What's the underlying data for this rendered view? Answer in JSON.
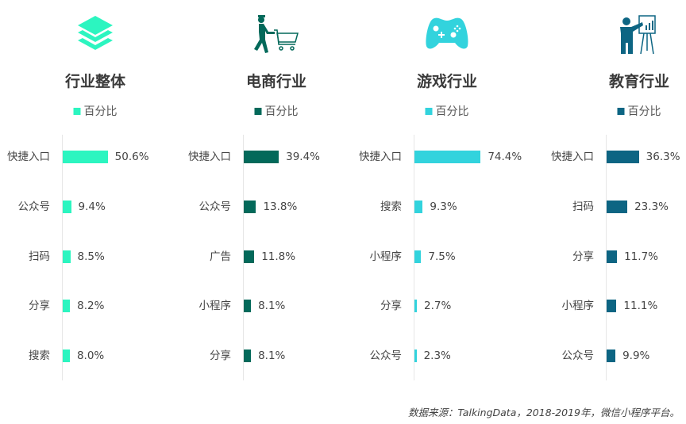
{
  "chart_data": [
    {
      "type": "bar",
      "title": "行业整体",
      "icon": "layers-icon",
      "color": "#2cf5c0",
      "legend": "百分比",
      "categories": [
        "快捷入口",
        "公众号",
        "扫码",
        "分享",
        "搜索"
      ],
      "values": [
        50.6,
        9.4,
        8.5,
        8.2,
        8.0
      ],
      "labels": [
        "50.6%",
        "9.4%",
        "8.5%",
        "8.2%",
        "8.0%"
      ]
    },
    {
      "type": "bar",
      "title": "电商行业",
      "icon": "shopping-cart-person-icon",
      "color": "#03695a",
      "legend": "百分比",
      "categories": [
        "快捷入口",
        "公众号",
        "广告",
        "小程序",
        "分享"
      ],
      "values": [
        39.4,
        13.8,
        11.8,
        8.1,
        8.1
      ],
      "labels": [
        "39.4%",
        "13.8%",
        "11.8%",
        "8.1%",
        "8.1%"
      ]
    },
    {
      "type": "bar",
      "title": "游戏行业",
      "icon": "gamepad-icon",
      "color": "#32d3dd",
      "legend": "百分比",
      "categories": [
        "快捷入口",
        "搜索",
        "小程序",
        "分享",
        "公众号"
      ],
      "values": [
        74.4,
        9.3,
        7.5,
        2.7,
        2.3
      ],
      "labels": [
        "74.4%",
        "9.3%",
        "7.5%",
        "2.7%",
        "2.3%"
      ]
    },
    {
      "type": "bar",
      "title": "教育行业",
      "icon": "teacher-presentation-icon",
      "color": "#0d6583",
      "legend": "百分比",
      "categories": [
        "快捷入口",
        "扫码",
        "分享",
        "小程序",
        "公众号"
      ],
      "values": [
        36.3,
        23.3,
        11.7,
        11.1,
        9.9
      ],
      "labels": [
        "36.3%",
        "23.3%",
        "11.7%",
        "11.1%",
        "9.9%"
      ]
    }
  ],
  "footer": "数据来源：TalkingData，2018-2019年，微信小程序平台。"
}
